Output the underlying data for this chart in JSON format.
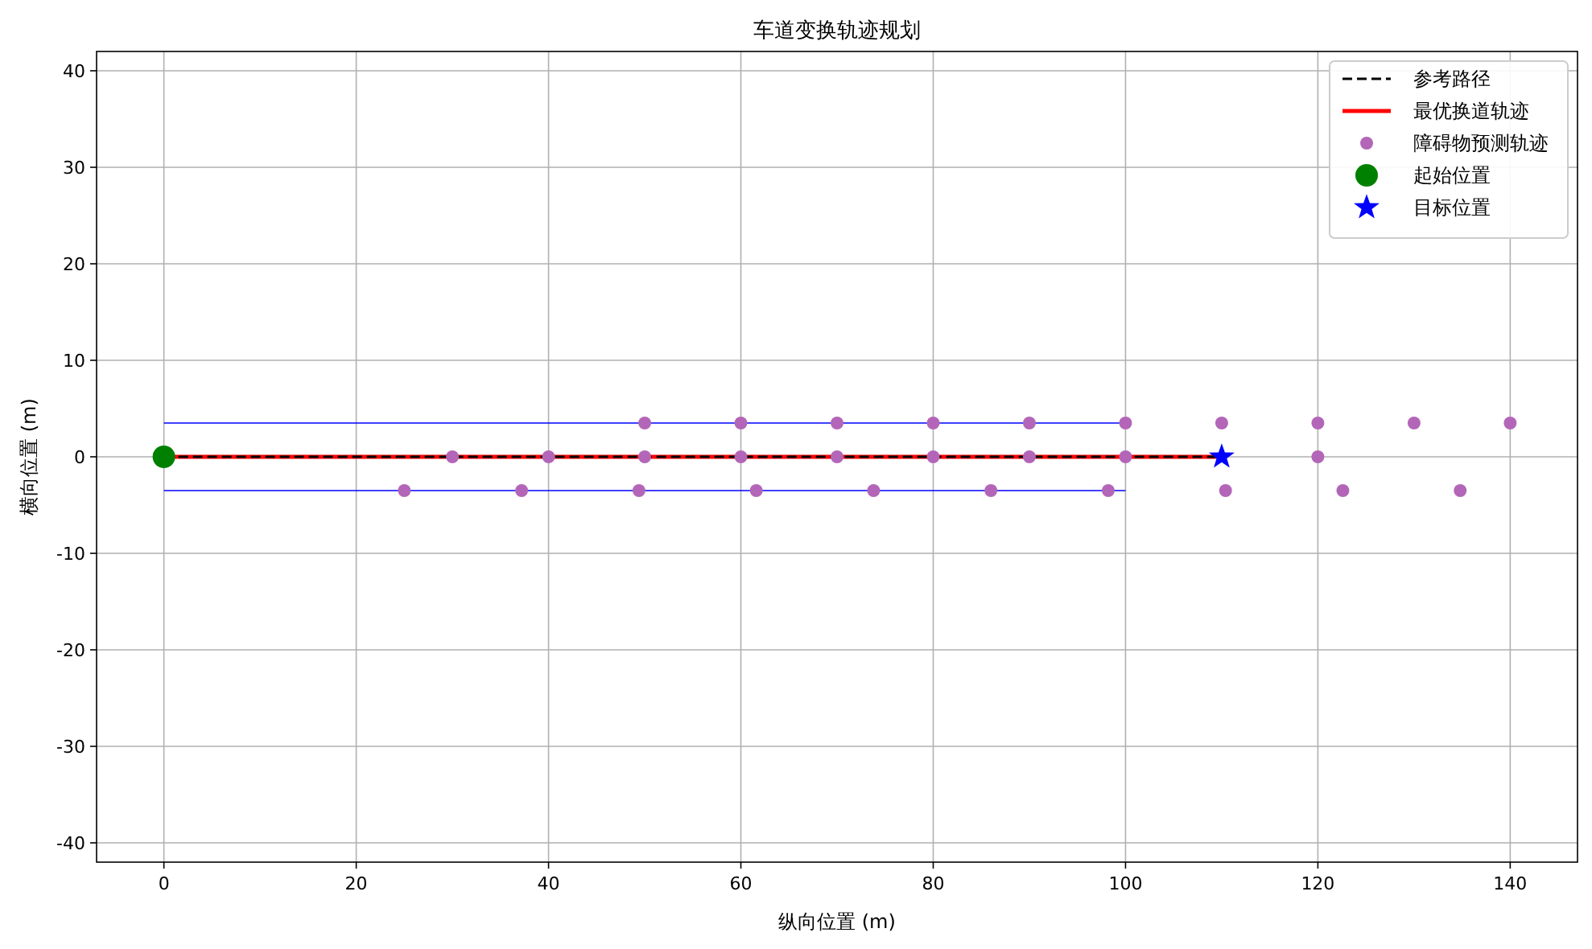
{
  "chart_data": {
    "type": "scatter",
    "title": "车道变换轨迹规划",
    "xlabel": "纵向位置 (m)",
    "ylabel": "横向位置 (m)",
    "xlim": [
      -7,
      147
    ],
    "ylim": [
      -42,
      42
    ],
    "xticks": [
      0,
      20,
      40,
      60,
      80,
      100,
      120,
      140
    ],
    "yticks": [
      {
        "value": -40,
        "label": "-40"
      },
      {
        "value": -30,
        "label": "-30"
      },
      {
        "value": -20,
        "label": "-20"
      },
      {
        "value": -10,
        "label": "-10"
      },
      0,
      10,
      20,
      30,
      40
    ],
    "grid": true,
    "legend": "top right",
    "series": [
      {
        "type": "line",
        "color": "#0000ff",
        "x": [
          0,
          100
        ],
        "values": [
          3.5,
          3.5
        ],
        "line_style": "solid",
        "marker": "none"
      },
      {
        "type": "line",
        "color": "#0000ff",
        "x": [
          0,
          100
        ],
        "values": [
          -3.5,
          -3.5
        ],
        "line_style": "solid",
        "marker": "none"
      },
      {
        "type": "line",
        "name": "参考路径",
        "color": "#000000",
        "x": [
          0,
          110
        ],
        "values": [
          0,
          0
        ],
        "line_style": "dashed",
        "marker": "none"
      },
      {
        "type": "line",
        "name": "最优换道轨迹",
        "color": "#ff0000",
        "x": [
          0,
          110
        ],
        "values": [
          0,
          0
        ],
        "line_style": "solid",
        "marker": "none"
      },
      {
        "name": "障碍物预测轨迹",
        "color": "#b366b8",
        "marker": "circle",
        "x": [
          50,
          60,
          70,
          80,
          90,
          100,
          110,
          120,
          130,
          140,
          30,
          40,
          50,
          60,
          70,
          80,
          90,
          100,
          120,
          25,
          37.2,
          49.4,
          61.6,
          73.8,
          86,
          98.2,
          110.4,
          122.6,
          134.8
        ],
        "values": [
          3.5,
          3.5,
          3.5,
          3.5,
          3.5,
          3.5,
          3.5,
          3.5,
          3.5,
          3.5,
          0,
          0,
          0,
          0,
          0,
          0,
          0,
          0,
          0,
          -3.5,
          -3.5,
          -3.5,
          -3.5,
          -3.5,
          -3.5,
          -3.5,
          -3.5,
          -3.5,
          -3.5
        ]
      },
      {
        "name": "起始位置",
        "color": "#008000",
        "marker": "circle",
        "x": [
          0
        ],
        "values": [
          0
        ]
      },
      {
        "name": "目标位置",
        "color": "#0000ff",
        "marker": "star",
        "x": [
          110
        ],
        "values": [
          0
        ]
      }
    ]
  }
}
